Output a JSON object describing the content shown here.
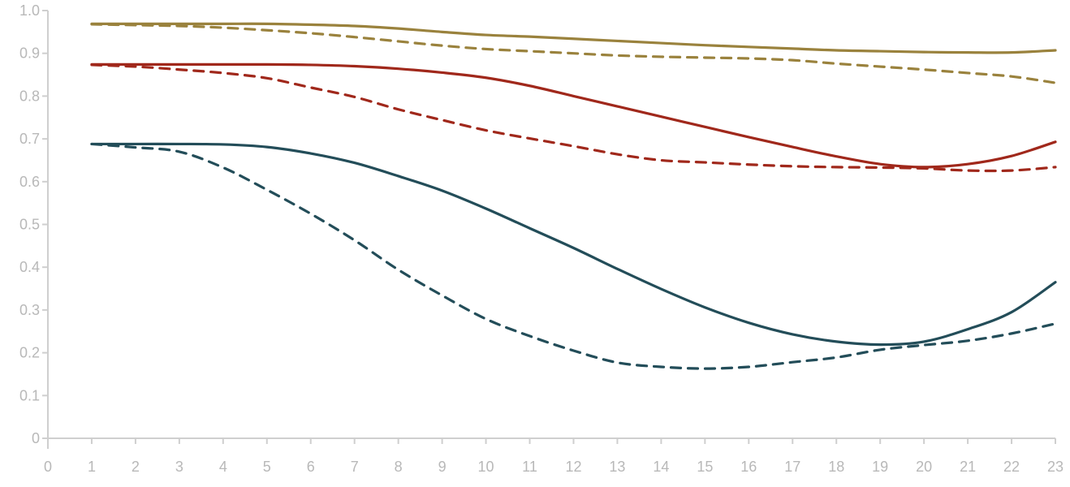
{
  "chart_data": {
    "type": "line",
    "title": "",
    "xlabel": "",
    "ylabel": "",
    "x_ticks": [
      "0",
      "1",
      "2",
      "3",
      "4",
      "5",
      "6",
      "7",
      "8",
      "9",
      "10",
      "11",
      "12",
      "13",
      "14",
      "15",
      "16",
      "17",
      "18",
      "19",
      "20",
      "21",
      "22",
      "23"
    ],
    "y_ticks": [
      "0",
      "0.1",
      "0.2",
      "0.3",
      "0.4",
      "0.5",
      "0.6",
      "0.7",
      "0.8",
      "0.9",
      "1.0"
    ],
    "xlim": [
      0,
      23
    ],
    "ylim": [
      0,
      1.0
    ],
    "grid": false,
    "legend": "none",
    "x": [
      1,
      2,
      3,
      4,
      5,
      6,
      7,
      8,
      9,
      10,
      11,
      12,
      13,
      14,
      15,
      16,
      17,
      18,
      19,
      20,
      21,
      22,
      23
    ],
    "series": [
      {
        "color": "#9a823d",
        "dash": "solid",
        "values": [
          0.969,
          0.969,
          0.969,
          0.969,
          0.969,
          0.967,
          0.964,
          0.958,
          0.95,
          0.943,
          0.939,
          0.934,
          0.929,
          0.924,
          0.919,
          0.915,
          0.911,
          0.907,
          0.905,
          0.903,
          0.902,
          0.902,
          0.907
        ]
      },
      {
        "color": "#9a823d",
        "dash": "dashed",
        "values": [
          0.968,
          0.966,
          0.964,
          0.96,
          0.954,
          0.947,
          0.938,
          0.928,
          0.918,
          0.91,
          0.905,
          0.9,
          0.895,
          0.892,
          0.89,
          0.888,
          0.884,
          0.876,
          0.869,
          0.862,
          0.854,
          0.846,
          0.831
        ]
      },
      {
        "color": "#a0281b",
        "dash": "solid",
        "values": [
          0.874,
          0.874,
          0.874,
          0.874,
          0.874,
          0.873,
          0.87,
          0.864,
          0.855,
          0.843,
          0.824,
          0.8,
          0.776,
          0.752,
          0.728,
          0.704,
          0.681,
          0.659,
          0.641,
          0.634,
          0.641,
          0.66,
          0.693
        ]
      },
      {
        "color": "#a0281b",
        "dash": "dashed",
        "values": [
          0.873,
          0.869,
          0.862,
          0.854,
          0.842,
          0.82,
          0.798,
          0.769,
          0.744,
          0.72,
          0.701,
          0.683,
          0.664,
          0.65,
          0.645,
          0.64,
          0.636,
          0.634,
          0.633,
          0.631,
          0.626,
          0.626,
          0.634
        ]
      },
      {
        "color": "#234d59",
        "dash": "solid",
        "values": [
          0.688,
          0.688,
          0.688,
          0.687,
          0.681,
          0.666,
          0.644,
          0.613,
          0.579,
          0.537,
          0.491,
          0.445,
          0.396,
          0.349,
          0.306,
          0.27,
          0.243,
          0.226,
          0.219,
          0.226,
          0.255,
          0.295,
          0.365
        ]
      },
      {
        "color": "#234d59",
        "dash": "dashed",
        "values": [
          0.688,
          0.68,
          0.67,
          0.633,
          0.581,
          0.525,
          0.463,
          0.394,
          0.334,
          0.279,
          0.239,
          0.205,
          0.177,
          0.167,
          0.163,
          0.167,
          0.178,
          0.189,
          0.207,
          0.218,
          0.228,
          0.245,
          0.268
        ]
      }
    ]
  }
}
